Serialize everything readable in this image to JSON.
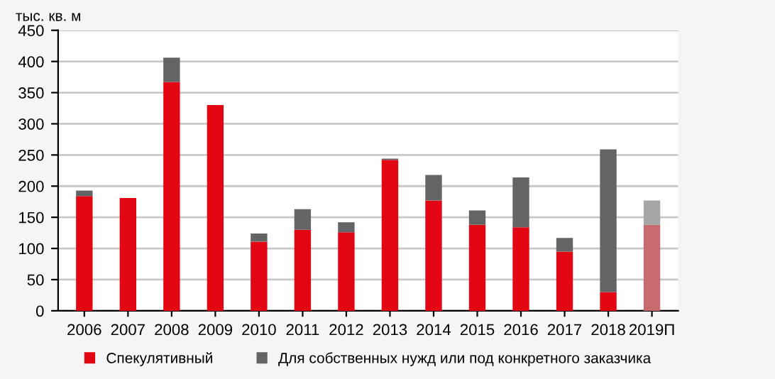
{
  "chart_data": {
    "type": "bar",
    "stacked": true,
    "ylabel": "тыс. кв. м",
    "categories": [
      "2006",
      "2007",
      "2008",
      "2009",
      "2010",
      "2011",
      "2012",
      "2013",
      "2014",
      "2015",
      "2016",
      "2017",
      "2018",
      "2019П"
    ],
    "series": [
      {
        "name": "Спекулятивный",
        "color": "#e30613",
        "colors": [
          "#e30613",
          "#e30613",
          "#e30613",
          "#e30613",
          "#e30613",
          "#e30613",
          "#e30613",
          "#e30613",
          "#e30613",
          "#e30613",
          "#e30613",
          "#e30613",
          "#e30613",
          "#c86a70"
        ],
        "values": [
          184,
          181,
          367,
          330,
          111,
          130,
          126,
          242,
          177,
          138,
          134,
          95,
          30,
          138
        ]
      },
      {
        "name": "Для собственных нужд или под конкретного заказчика",
        "color": "#636466",
        "colors": [
          "#636466",
          "#636466",
          "#636466",
          "#636466",
          "#636466",
          "#636466",
          "#636466",
          "#636466",
          "#636466",
          "#636466",
          "#636466",
          "#636466",
          "#636466",
          "#a5a6a8"
        ],
        "values": [
          9,
          0,
          39,
          0,
          13,
          33,
          16,
          2,
          41,
          23,
          80,
          22,
          229,
          39
        ]
      }
    ],
    "ylim": [
      0,
      450
    ],
    "yticks": [
      0,
      50,
      100,
      150,
      200,
      250,
      300,
      350,
      400,
      450
    ],
    "grid": "y",
    "legend": "bottom"
  }
}
